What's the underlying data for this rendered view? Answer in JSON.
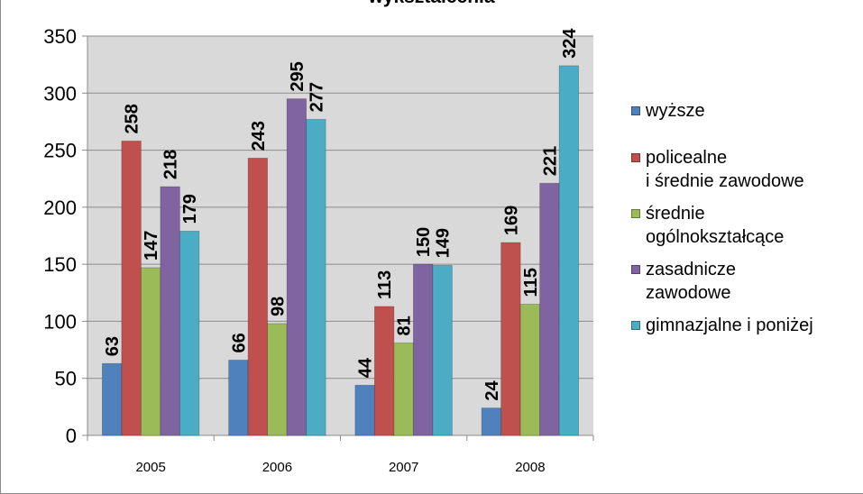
{
  "chart_data": {
    "type": "bar",
    "title": "wykształcenia",
    "categories": [
      "2005",
      "2006",
      "2007",
      "2008"
    ],
    "series": [
      {
        "name": "wyższe",
        "color": "#4f81bd",
        "values": [
          63,
          66,
          44,
          24
        ]
      },
      {
        "name": "policealne\ni średnie zawodowe",
        "color": "#c0504d",
        "values": [
          258,
          243,
          113,
          169
        ]
      },
      {
        "name": "średnie\nogólnokształcące",
        "color": "#9bbb59",
        "values": [
          147,
          98,
          81,
          115
        ]
      },
      {
        "name": "zasadnicze\nzawodowe",
        "color": "#8064a2",
        "values": [
          218,
          295,
          150,
          221
        ]
      },
      {
        "name": "gimnazjalne i poniżej",
        "color": "#4bacc6",
        "values": [
          179,
          277,
          149,
          324
        ]
      }
    ],
    "ylim": [
      0,
      350
    ],
    "yticks": [
      0,
      50,
      100,
      150,
      200,
      250,
      300,
      350
    ],
    "grid": true,
    "legend_position": "right",
    "xlabel": "",
    "ylabel": ""
  }
}
